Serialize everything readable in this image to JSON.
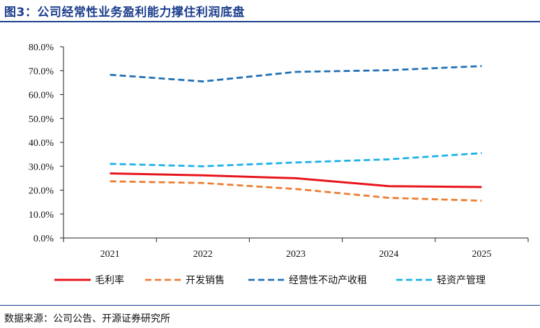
{
  "title": "图3：公司经常性业务盈利能力撑住利润底盘",
  "source": "数据来源：公司公告、开源证券研究所",
  "chart_data": {
    "type": "line",
    "title": "图3：公司经常性业务盈利能力撑住利润底盘",
    "x": [
      "2021",
      "2022",
      "2023",
      "2024",
      "2025"
    ],
    "ylim": [
      0,
      80
    ],
    "yticks": [
      0,
      10,
      20,
      30,
      40,
      50,
      60,
      70,
      80
    ],
    "ytick_labels": [
      "0.0%",
      "10.0%",
      "20.0%",
      "30.0%",
      "40.0%",
      "50.0%",
      "60.0%",
      "70.0%",
      "80.0%"
    ],
    "grid": false,
    "legend_position": "bottom",
    "series": [
      {
        "name": "毛利率",
        "values": [
          27.0,
          26.2,
          25.0,
          21.7,
          21.3
        ],
        "color": "#e8141b",
        "style": "solid"
      },
      {
        "name": "开发销售",
        "values": [
          23.7,
          23.0,
          20.5,
          16.8,
          15.6
        ],
        "color": "#ed7d31",
        "style": "dashed"
      },
      {
        "name": "经营性不动产收租",
        "values": [
          68.3,
          65.5,
          69.5,
          70.2,
          71.9
        ],
        "color": "#1f6fb5",
        "style": "dashed"
      },
      {
        "name": "轻资产管理",
        "values": [
          31.0,
          30.0,
          31.6,
          32.9,
          35.5
        ],
        "color": "#1ab1e8",
        "style": "dashed"
      }
    ]
  }
}
